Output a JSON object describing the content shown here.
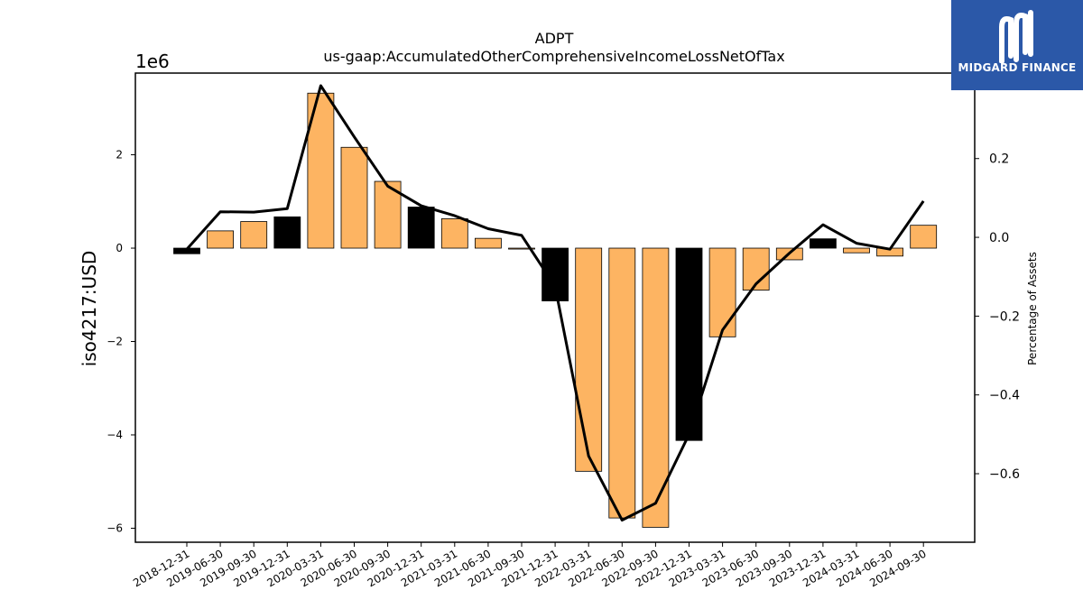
{
  "chart_data": {
    "type": "bar",
    "title": "ADPT",
    "subtitle": "us-gaap:AccumulatedOtherComprehensiveIncomeLossNetOfTax",
    "ylabel": "iso4217:USD",
    "y2label": "Percentage of Assets",
    "y_offset_label": "1e6",
    "ylim": [
      -6.3,
      3.75
    ],
    "y2lim": [
      -0.774,
      0.417
    ],
    "yticks": [
      -6,
      -4,
      -2,
      0,
      2
    ],
    "ytick_labels": [
      "−6",
      "−4",
      "−2",
      "0",
      "2"
    ],
    "y2ticks": [
      -0.6,
      -0.4,
      -0.2,
      0.0,
      0.2
    ],
    "y2tick_labels": [
      "−0.6",
      "−0.4",
      "−0.2",
      "0.0",
      "0.2"
    ],
    "categories": [
      "2018-12-31",
      "2019-06-30",
      "2019-09-30",
      "2019-12-31",
      "2020-03-31",
      "2020-06-30",
      "2020-09-30",
      "2020-12-31",
      "2021-03-31",
      "2021-06-30",
      "2021-09-30",
      "2021-12-31",
      "2022-03-31",
      "2022-06-30",
      "2022-09-30",
      "2022-12-31",
      "2023-03-31",
      "2023-06-30",
      "2023-09-30",
      "2023-12-31",
      "2024-03-31",
      "2024-06-30",
      "2024-09-30"
    ],
    "series": [
      {
        "kind": "bar",
        "values": [
          -0.12,
          0.37,
          0.57,
          0.67,
          3.32,
          2.16,
          1.43,
          0.88,
          0.63,
          0.21,
          -0.02,
          -1.13,
          -4.78,
          -5.78,
          -5.98,
          -4.12,
          -1.9,
          -0.9,
          -0.25,
          0.2,
          -0.1,
          -0.17,
          0.49
        ],
        "colors": [
          "#000000",
          "#fdb462",
          "#fdb462",
          "#000000",
          "#fdb462",
          "#fdb462",
          "#fdb462",
          "#000000",
          "#fdb462",
          "#fdb462",
          "#fdb462",
          "#000000",
          "#fdb462",
          "#fdb462",
          "#fdb462",
          "#000000",
          "#fdb462",
          "#fdb462",
          "#fdb462",
          "#000000",
          "#fdb462",
          "#fdb462",
          "#fdb462"
        ]
      },
      {
        "kind": "line",
        "axis": "right",
        "color": "#000000",
        "values": [
          -0.03,
          0.065,
          0.064,
          0.073,
          0.385,
          0.255,
          0.13,
          0.08,
          0.055,
          0.022,
          0.005,
          -0.125,
          -0.555,
          -0.718,
          -0.675,
          -0.5,
          -0.235,
          -0.118,
          -0.04,
          0.032,
          -0.015,
          -0.03,
          0.092
        ]
      }
    ],
    "grid": false,
    "colors": {
      "bar_accent": "#fdb462",
      "bar_highlight": "#000000"
    }
  },
  "logo": {
    "name": "midgard-finance-logo",
    "text": "MIDGARD FINANCE",
    "bg": "#2b58a8"
  }
}
